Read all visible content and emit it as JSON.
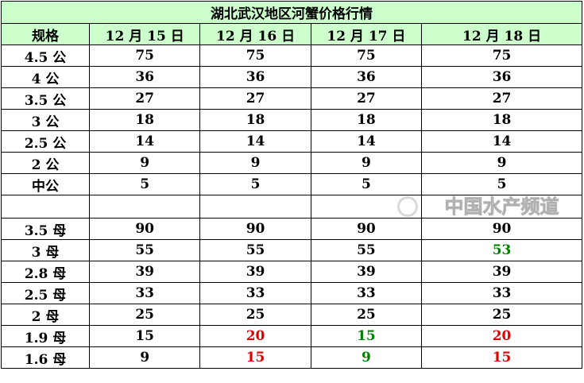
{
  "title": "湖北武汉地区河蟹价格行情",
  "headers": [
    "规格",
    "12 月 15 日",
    "12 月 16 日",
    "12 月 17 日",
    "12 月 18 日"
  ],
  "colors": {
    "header_bg": "#ccffcc",
    "up": "#e00000",
    "down": "#008000"
  },
  "rows": [
    {
      "spec": "4.5 公",
      "values": [
        "75",
        "75",
        "75",
        "75"
      ],
      "colors": [
        "",
        "",
        "",
        ""
      ]
    },
    {
      "spec": "4 公",
      "values": [
        "36",
        "36",
        "36",
        "36"
      ],
      "colors": [
        "",
        "",
        "",
        ""
      ]
    },
    {
      "spec": "3.5 公",
      "values": [
        "27",
        "27",
        "27",
        "27"
      ],
      "colors": [
        "",
        "",
        "",
        ""
      ]
    },
    {
      "spec": "3 公",
      "values": [
        "18",
        "18",
        "18",
        "18"
      ],
      "colors": [
        "",
        "",
        "",
        ""
      ]
    },
    {
      "spec": "2.5 公",
      "values": [
        "14",
        "14",
        "14",
        "14"
      ],
      "colors": [
        "",
        "",
        "",
        ""
      ]
    },
    {
      "spec": "2 公",
      "values": [
        "9",
        "9",
        "9",
        "9"
      ],
      "colors": [
        "",
        "",
        "",
        ""
      ]
    },
    {
      "spec": "中公",
      "values": [
        "5",
        "5",
        "5",
        "5"
      ],
      "colors": [
        "",
        "",
        "",
        ""
      ]
    },
    {
      "spec": "",
      "values": [
        "",
        "",
        "",
        ""
      ],
      "colors": [
        "",
        "",
        "",
        ""
      ]
    },
    {
      "spec": "3.5 母",
      "values": [
        "90",
        "90",
        "90",
        "90"
      ],
      "colors": [
        "",
        "",
        "",
        ""
      ]
    },
    {
      "spec": "3 母",
      "values": [
        "55",
        "55",
        "55",
        "53"
      ],
      "colors": [
        "",
        "",
        "",
        "#008000"
      ]
    },
    {
      "spec": "2.8 母",
      "values": [
        "39",
        "39",
        "39",
        "39"
      ],
      "colors": [
        "",
        "",
        "",
        ""
      ]
    },
    {
      "spec": "2.5 母",
      "values": [
        "33",
        "33",
        "33",
        "33"
      ],
      "colors": [
        "",
        "",
        "",
        ""
      ]
    },
    {
      "spec": "2 母",
      "values": [
        "25",
        "25",
        "25",
        "25"
      ],
      "colors": [
        "",
        "",
        "",
        ""
      ]
    },
    {
      "spec": "1.9 母",
      "values": [
        "15",
        "20",
        "15",
        "20"
      ],
      "colors": [
        "",
        "#e00000",
        "#008000",
        "#e00000"
      ]
    },
    {
      "spec": "1.6 母",
      "values": [
        "9",
        "15",
        "9",
        "15"
      ],
      "colors": [
        "",
        "#e00000",
        "#008000",
        "#e00000"
      ]
    }
  ],
  "watermark": "中国水产频道"
}
